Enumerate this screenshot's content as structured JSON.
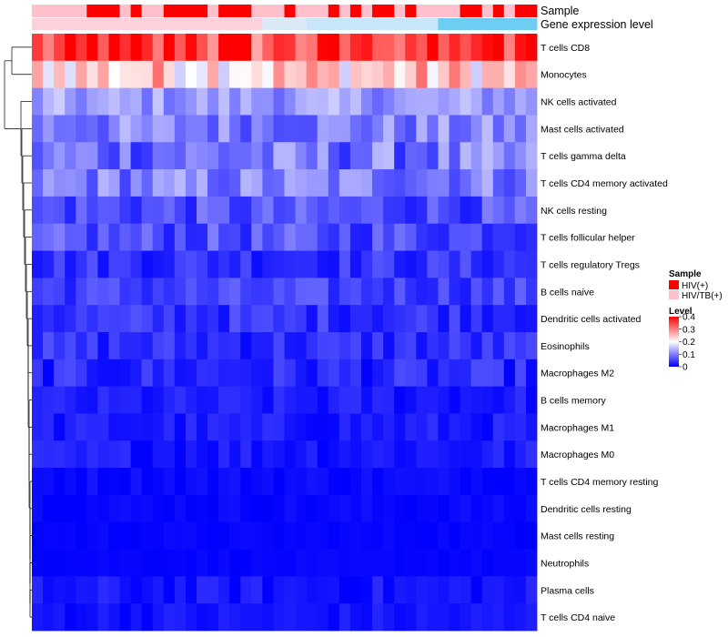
{
  "chart_data": {
    "type": "heatmap",
    "title": "",
    "annotation_tracks": [
      {
        "name": "Sample",
        "label": "Sample"
      },
      {
        "name": "Gene expression level",
        "label": "Gene expression level"
      }
    ],
    "rows": [
      "T cells CD8",
      "Monocytes",
      "NK cells activated",
      "Mast cells activated",
      "T cells gamma delta",
      "T cells CD4 memory activated",
      "NK cells resting",
      "T cells follicular helper",
      "T cells regulatory  Tregs",
      "B cells naive",
      "Dendritic cells activated",
      "Eosinophils",
      "Macrophages M2",
      "B cells memory",
      "Macrophages M1",
      "Macrophages M0",
      "T cells CD4 memory resting",
      "Dendritic cells resting",
      "Mast cells resting",
      "Neutrophils",
      "Plasma cells",
      "T cells CD4 naive"
    ],
    "n_columns": 46,
    "sample_groups": [
      "HIV/TB(+)",
      "HIV/TB(+)",
      "HIV/TB(+)",
      "HIV/TB(+)",
      "HIV/TB(+)",
      "HIV(+)",
      "HIV(+)",
      "HIV(+)",
      "HIV/TB(+)",
      "HIV(+)",
      "HIV/TB(+)",
      "HIV/TB(+)",
      "HIV(+)",
      "HIV(+)",
      "HIV(+)",
      "HIV(+)",
      "HIV/TB(+)",
      "HIV(+)",
      "HIV(+)",
      "HIV(+)",
      "HIV/TB(+)",
      "HIV/TB(+)",
      "HIV/TB(+)",
      "HIV(+)",
      "HIV/TB(+)",
      "HIV/TB(+)",
      "HIV/TB(+)",
      "HIV(+)",
      "HIV/TB(+)",
      "HIV(+)",
      "HIV/TB(+)",
      "HIV(+)",
      "HIV(+)",
      "HIV/TB(+)",
      "HIV(+)",
      "HIV/TB(+)",
      "HIV/TB(+)",
      "HIV/TB(+)",
      "HIV/TB(+)",
      "HIV(+)",
      "HIV(+)",
      "HIV/TB(+)",
      "HIV(+)",
      "HIV/TB(+)",
      "HIV(+)",
      "HIV(+)"
    ],
    "legend_sample": {
      "title": "Sample",
      "entries": [
        {
          "label": "HIV(+)",
          "color": "#ff0000"
        },
        {
          "label": "HIV/TB(+)",
          "color": "#ffc0cb"
        }
      ]
    },
    "legend_level": {
      "title": "Level",
      "ticks": [
        0,
        0.1,
        0.2,
        0.3,
        0.4
      ],
      "tick_labels": [
        "0",
        "0.1",
        "0.2",
        "0.3",
        "0.4"
      ],
      "range": [
        0,
        0.4
      ],
      "colors": [
        "#0000ff",
        "#ffffff",
        "#ff0000"
      ]
    },
    "row_means": [
      0.33,
      0.24,
      0.12,
      0.1,
      0.09,
      0.1,
      0.06,
      0.06,
      0.04,
      0.05,
      0.04,
      0.035,
      0.03,
      0.02,
      0.02,
      0.02,
      0.008,
      0.006,
      0.004,
      0.004,
      0.015,
      0.015
    ],
    "row_spreads": [
      0.08,
      0.08,
      0.04,
      0.05,
      0.06,
      0.05,
      0.04,
      0.04,
      0.03,
      0.03,
      0.03,
      0.03,
      0.03,
      0.02,
      0.02,
      0.02,
      0.01,
      0.008,
      0.005,
      0.004,
      0.02,
      0.015
    ],
    "expression_track_colors": [
      "#ffd1dc",
      "#ffe4e9",
      "#6dcdf2"
    ]
  },
  "colors": {
    "hiv": "#ff0000",
    "hiv_tb": "#ffc0cb",
    "low": "#0000ff",
    "mid": "#ffffff",
    "high": "#ff0000"
  }
}
